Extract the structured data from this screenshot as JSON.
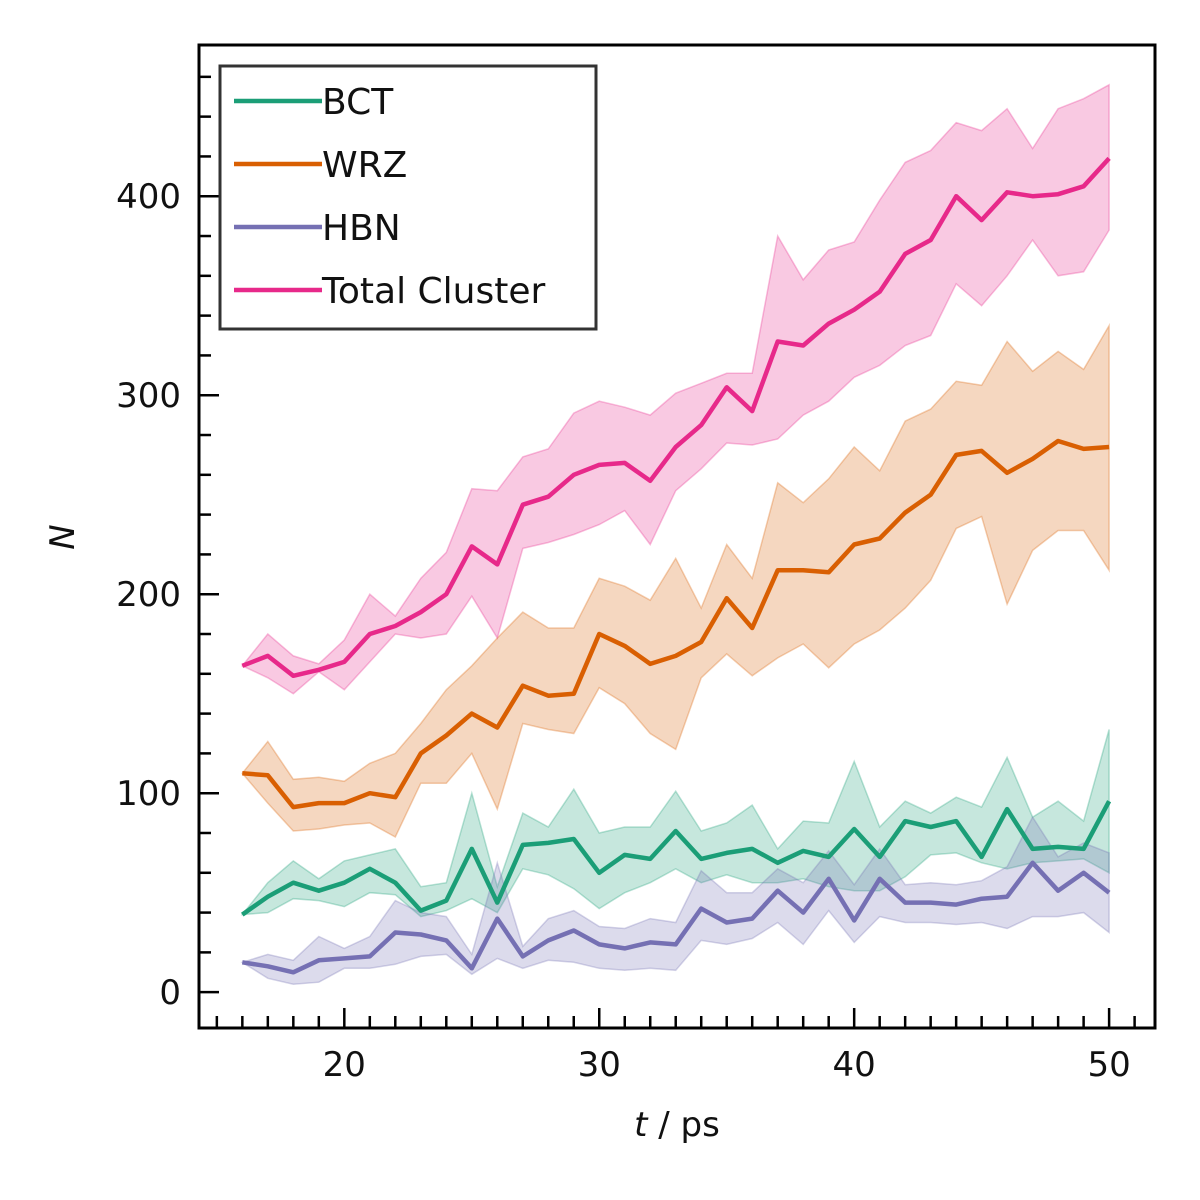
{
  "chart_data": {
    "type": "line",
    "xlabel": "t / ps",
    "ylabel": "N",
    "xlim": [
      14.3,
      51.8
    ],
    "ylim": [
      -18,
      476
    ],
    "xticks": [
      20,
      30,
      40,
      50
    ],
    "yticks": [
      0,
      100,
      200,
      300,
      400
    ],
    "grid": false,
    "legend": "top-left",
    "x": [
      16,
      17,
      18,
      19,
      20,
      21,
      22,
      23,
      24,
      25,
      26,
      27,
      28,
      29,
      30,
      31,
      32,
      33,
      34,
      35,
      36,
      37,
      38,
      39,
      40,
      41,
      42,
      43,
      44,
      45,
      46,
      47,
      48,
      49,
      50
    ],
    "series": [
      {
        "name": "BCT",
        "color": "#1b9e77",
        "values": [
          39,
          48,
          55,
          51,
          55,
          62,
          55,
          41,
          46,
          72,
          45,
          74,
          75,
          77,
          60,
          69,
          67,
          81,
          67,
          70,
          72,
          65,
          71,
          68,
          82,
          68,
          86,
          83,
          86,
          68,
          92,
          72,
          73,
          72,
          96
        ],
        "lower": [
          39,
          40,
          47,
          46,
          43,
          50,
          49,
          38,
          41,
          47,
          40,
          62,
          59,
          52,
          42,
          50,
          55,
          62,
          55,
          59,
          55,
          55,
          57,
          53,
          51,
          51,
          58,
          69,
          70,
          65,
          62,
          65,
          66,
          67,
          60
        ],
        "upper": [
          39,
          55,
          66,
          57,
          66,
          69,
          72,
          53,
          55,
          100,
          53,
          90,
          83,
          102,
          80,
          83,
          83,
          101,
          81,
          85,
          94,
          72,
          86,
          85,
          116,
          83,
          96,
          90,
          98,
          93,
          118,
          88,
          96,
          86,
          132
        ]
      },
      {
        "name": "WRZ",
        "color": "#d95f02",
        "values": [
          110,
          109,
          93,
          95,
          95,
          100,
          98,
          120,
          129,
          140,
          133,
          154,
          149,
          150,
          180,
          174,
          165,
          169,
          176,
          198,
          183,
          212,
          212,
          211,
          225,
          228,
          241,
          250,
          270,
          272,
          261,
          268,
          277,
          273,
          274
        ],
        "lower": [
          110,
          95,
          81,
          82,
          84,
          85,
          78,
          105,
          105,
          120,
          92,
          135,
          132,
          130,
          153,
          145,
          130,
          122,
          158,
          170,
          159,
          168,
          175,
          163,
          175,
          182,
          193,
          207,
          233,
          239,
          195,
          222,
          232,
          232,
          212
        ],
        "upper": [
          110,
          126,
          107,
          108,
          106,
          115,
          120,
          135,
          152,
          164,
          178,
          191,
          183,
          183,
          208,
          204,
          197,
          218,
          193,
          225,
          208,
          256,
          246,
          258,
          274,
          262,
          287,
          293,
          307,
          305,
          327,
          312,
          322,
          313,
          335
        ]
      },
      {
        "name": "HBN",
        "color": "#7570b3",
        "values": [
          15,
          13,
          10,
          16,
          17,
          18,
          30,
          29,
          26,
          12,
          37,
          18,
          26,
          31,
          24,
          22,
          25,
          24,
          42,
          35,
          37,
          51,
          40,
          57,
          36,
          57,
          45,
          45,
          44,
          47,
          48,
          65,
          51,
          60,
          50
        ],
        "lower": [
          15,
          7,
          4,
          5,
          12,
          12,
          14,
          18,
          19,
          9,
          17,
          12,
          16,
          15,
          12,
          11,
          12,
          11,
          26,
          24,
          27,
          35,
          24,
          41,
          25,
          38,
          35,
          35,
          34,
          35,
          32,
          38,
          38,
          40,
          30
        ],
        "upper": [
          15,
          19,
          16,
          28,
          22,
          28,
          46,
          40,
          38,
          19,
          65,
          23,
          37,
          41,
          33,
          32,
          37,
          35,
          61,
          50,
          50,
          62,
          55,
          71,
          54,
          72,
          54,
          55,
          54,
          56,
          63,
          88,
          68,
          75,
          70
        ]
      },
      {
        "name": "Total Cluster",
        "color": "#e7298a",
        "values": [
          164,
          169,
          159,
          162,
          166,
          180,
          184,
          191,
          200,
          224,
          215,
          245,
          249,
          260,
          265,
          266,
          257,
          274,
          285,
          304,
          292,
          327,
          325,
          336,
          343,
          352,
          371,
          378,
          400,
          388,
          402,
          400,
          401,
          405,
          419
        ],
        "lower": [
          164,
          158,
          150,
          161,
          152,
          166,
          180,
          178,
          180,
          199,
          178,
          223,
          226,
          230,
          235,
          242,
          225,
          252,
          263,
          276,
          275,
          278,
          290,
          297,
          309,
          315,
          325,
          330,
          356,
          345,
          360,
          378,
          360,
          362,
          383
        ],
        "upper": [
          164,
          180,
          169,
          165,
          177,
          200,
          189,
          208,
          221,
          253,
          252,
          269,
          273,
          291,
          297,
          294,
          290,
          301,
          306,
          311,
          311,
          380,
          358,
          373,
          377,
          398,
          417,
          423,
          437,
          433,
          444,
          424,
          444,
          449,
          456
        ]
      }
    ]
  }
}
